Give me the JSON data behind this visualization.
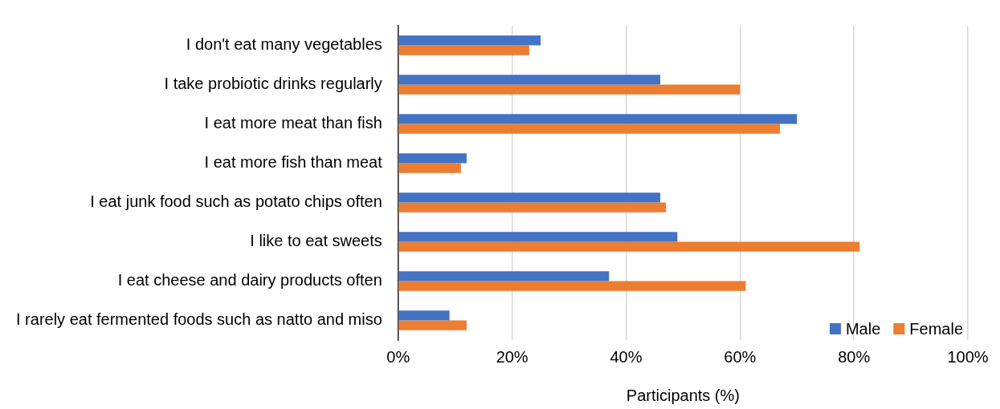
{
  "chart_data": {
    "type": "bar",
    "orientation": "horizontal",
    "xlabel": "Participants (%)",
    "categories": [
      "I don't eat many vegetables",
      "I take probiotic drinks regularly",
      "I eat more meat than fish",
      "I eat more fish than meat",
      "I eat junk food such as potato chips often",
      "I like to eat sweets",
      "I eat cheese and dairy products often",
      "I rarely eat fermented foods such as natto and miso"
    ],
    "series": [
      {
        "name": "Male",
        "color": "#4472c4",
        "values": [
          25,
          46,
          70,
          12,
          46,
          49,
          37,
          9
        ]
      },
      {
        "name": "Female",
        "color": "#ed7d31",
        "values": [
          23,
          60,
          67,
          11,
          47,
          81,
          61,
          12
        ]
      }
    ],
    "xlim": [
      0,
      100
    ],
    "xticks": [
      {
        "value": 0,
        "label": "0%"
      },
      {
        "value": 20,
        "label": "20%"
      },
      {
        "value": 40,
        "label": "40%"
      },
      {
        "value": 60,
        "label": "60%"
      },
      {
        "value": 80,
        "label": "80%"
      },
      {
        "value": 100,
        "label": "100%"
      }
    ],
    "grid": "x",
    "legend": "bottom right"
  }
}
